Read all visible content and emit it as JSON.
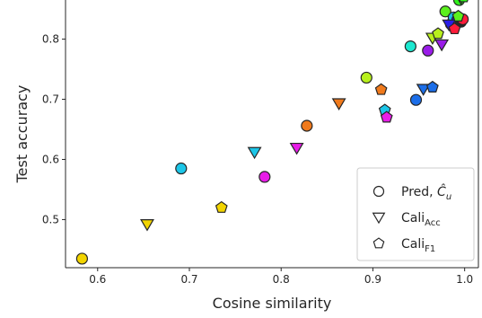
{
  "chart_data": {
    "type": "scatter",
    "xlabel": "Cosine similarity",
    "ylabel": "Test accuracy",
    "xlim": [
      0.565,
      1.015
    ],
    "ylim": [
      0.42,
      0.88
    ],
    "x_ticks": [
      0.6,
      0.7,
      0.8,
      0.9,
      1.0
    ],
    "x_tick_labels": [
      "0.6",
      "0.7",
      "0.8",
      "0.9",
      "1.0"
    ],
    "y_ticks": [
      0.5,
      0.6,
      0.7,
      0.8
    ],
    "y_tick_labels": [
      "0.5",
      "0.6",
      "0.7",
      "0.8"
    ],
    "grid": false,
    "legend_position": "lower-right",
    "series": [
      {
        "name": "Pred, Ĉ_u",
        "marker": "circle",
        "points": [
          {
            "x": 0.583,
            "y": 0.435,
            "color": "#f2d400"
          },
          {
            "x": 0.691,
            "y": 0.585,
            "color": "#1cc6e8"
          },
          {
            "x": 0.782,
            "y": 0.571,
            "color": "#e81ce8"
          },
          {
            "x": 0.828,
            "y": 0.656,
            "color": "#f07a1c"
          },
          {
            "x": 0.893,
            "y": 0.736,
            "color": "#b8f01c"
          },
          {
            "x": 0.941,
            "y": 0.788,
            "color": "#1ce8d0"
          },
          {
            "x": 0.947,
            "y": 0.699,
            "color": "#1c6ee8"
          },
          {
            "x": 0.96,
            "y": 0.781,
            "color": "#9a1ce8"
          },
          {
            "x": 0.979,
            "y": 0.846,
            "color": "#5af01c"
          },
          {
            "x": 0.985,
            "y": 0.825,
            "color": "#2a1ce8"
          },
          {
            "x": 0.988,
            "y": 0.836,
            "color": "#1cb8e8"
          },
          {
            "x": 0.992,
            "y": 0.832,
            "color": "#1c1ce8"
          },
          {
            "x": 0.994,
            "y": 0.865,
            "color": "#30f01c"
          },
          {
            "x": 0.996,
            "y": 0.829,
            "color": "#262626"
          },
          {
            "x": 0.998,
            "y": 0.833,
            "color": "#ff1c3a"
          }
        ]
      },
      {
        "name": "Cali_Acc",
        "marker": "triangle-down",
        "points": [
          {
            "x": 0.654,
            "y": 0.492,
            "color": "#f2d400"
          },
          {
            "x": 0.771,
            "y": 0.612,
            "color": "#1cc6e8"
          },
          {
            "x": 0.817,
            "y": 0.619,
            "color": "#e81ce8"
          },
          {
            "x": 0.863,
            "y": 0.693,
            "color": "#f07a1c"
          },
          {
            "x": 0.955,
            "y": 0.717,
            "color": "#1c6ee8"
          },
          {
            "x": 0.965,
            "y": 0.802,
            "color": "#b8f01c"
          },
          {
            "x": 0.975,
            "y": 0.791,
            "color": "#9a1ce8"
          },
          {
            "x": 0.983,
            "y": 0.824,
            "color": "#2a1ce8"
          },
          {
            "x": 0.996,
            "y": 0.868,
            "color": "#5af01c"
          }
        ]
      },
      {
        "name": "Cali_F1",
        "marker": "pentagon",
        "points": [
          {
            "x": 0.735,
            "y": 0.52,
            "color": "#f2d400"
          },
          {
            "x": 0.909,
            "y": 0.716,
            "color": "#f07a1c"
          },
          {
            "x": 0.913,
            "y": 0.682,
            "color": "#1cc6e8"
          },
          {
            "x": 0.915,
            "y": 0.67,
            "color": "#e81ce8"
          },
          {
            "x": 0.965,
            "y": 0.72,
            "color": "#1c6ee8"
          },
          {
            "x": 0.971,
            "y": 0.809,
            "color": "#b8f01c"
          },
          {
            "x": 0.989,
            "y": 0.817,
            "color": "#ff1c3a"
          },
          {
            "x": 0.993,
            "y": 0.838,
            "color": "#5af01c"
          },
          {
            "x": 0.999,
            "y": 0.87,
            "color": "#30f01c"
          }
        ]
      }
    ],
    "legend": [
      {
        "marker": "circle",
        "label": "Pred, ",
        "math": "Ĉ",
        "sub": "u"
      },
      {
        "marker": "triangle-down",
        "label": "Cali",
        "sub": "Acc"
      },
      {
        "marker": "pentagon",
        "label": "Cali",
        "sub": "F1"
      }
    ]
  }
}
